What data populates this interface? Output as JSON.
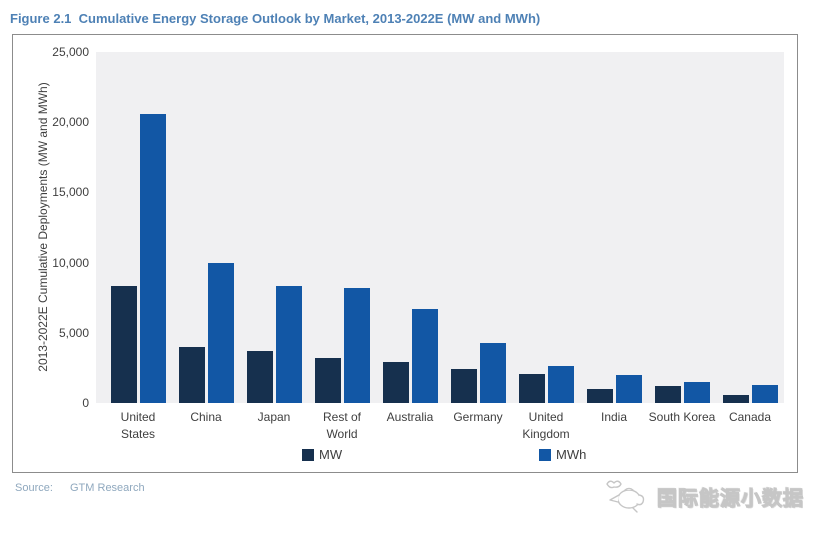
{
  "page": {
    "source_label": "Source:",
    "source_value": "GTM Research",
    "watermark_text": "国际能源小数据",
    "watermark_icon": "teapot-icon"
  },
  "colors": {
    "title_text": "#4E81B5",
    "axis_text": "#3F3F3F",
    "plot_background": "#F0F0F2",
    "frame_border": "#8C8C8C",
    "source_text": "#8FA8BE",
    "mw_bar": "#16304E",
    "mwh_bar": "#1257A5"
  },
  "chart_data": {
    "type": "bar",
    "title": "Figure 2.1  Cumulative Energy Storage Outlook by Market, 2013-2022E (MW and MWh)",
    "xlabel": "",
    "ylabel": "2013-2022E Cumulative Deployments (MW and MWh)",
    "ylim": [
      0,
      25000
    ],
    "ytick_values": [
      0,
      5000,
      10000,
      15000,
      20000,
      25000
    ],
    "ytick_labels": [
      "0",
      "5,000",
      "10,000",
      "15,000",
      "20,000",
      "25,000"
    ],
    "grid": false,
    "legend_position": "bottom",
    "categories": [
      "United States",
      "China",
      "Japan",
      "Rest of World",
      "Australia",
      "Germany",
      "United Kingdom",
      "India",
      "South Korea",
      "Canada"
    ],
    "series": [
      {
        "name": "MW",
        "color": "#16304E",
        "values": [
          8300,
          4000,
          3700,
          3200,
          2900,
          2400,
          2100,
          1000,
          1200,
          600
        ]
      },
      {
        "name": "MWh",
        "color": "#1257A5",
        "values": [
          20600,
          10000,
          8300,
          8200,
          6700,
          4300,
          2600,
          2000,
          1500,
          1300
        ]
      }
    ]
  }
}
